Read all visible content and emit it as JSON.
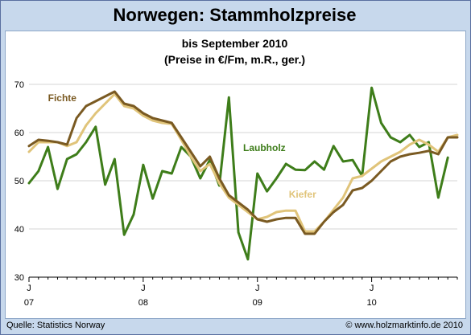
{
  "title": "Norwegen: Stammholzpreise",
  "subtitle_line1": "bis September 2010",
  "subtitle_line2": "(Preise in €/Fm, m.R., ger.)",
  "source": "Quelle: Statistics Norway",
  "copyright": "© www.holzmarktinfo.de 2010",
  "chart_data": {
    "type": "line",
    "ylim": [
      30,
      70
    ],
    "yticks": [
      30,
      40,
      50,
      60,
      70
    ],
    "xlim": [
      0,
      45
    ],
    "x_ticks": [
      {
        "x": 0,
        "month": "J",
        "year": "07"
      },
      {
        "x": 12,
        "month": "J",
        "year": "08"
      },
      {
        "x": 24,
        "month": "J",
        "year": "09"
      },
      {
        "x": 36,
        "month": "J",
        "year": "10"
      }
    ],
    "grid": true,
    "colors": {
      "Fichte": "#7a5a22",
      "Kiefer": "#e0c47a",
      "Laubholz": "#3e7d1a",
      "grid": "#d5d5d5"
    },
    "series": [
      {
        "name": "Fichte",
        "label_pos": [
          2,
          66.5
        ],
        "values": [
          57.2,
          58.5,
          58.3,
          58.0,
          57.5,
          63.0,
          65.5,
          66.5,
          67.5,
          68.5,
          66.0,
          65.5,
          64.0,
          63.0,
          62.5,
          62.0,
          59.0,
          56.0,
          53.0,
          55.0,
          50.5,
          47.0,
          45.5,
          44.0,
          42.0,
          41.5,
          42.0,
          42.3,
          42.3,
          39.0,
          39.0,
          41.5,
          43.5,
          45.0,
          48.0,
          48.5,
          50.0,
          52.0,
          54.0,
          55.0,
          55.5,
          55.8,
          56.2,
          55.5,
          59.0,
          59.0
        ]
      },
      {
        "name": "Kiefer",
        "label_pos": [
          27.3,
          46.5
        ],
        "values": [
          56.0,
          58.0,
          58.0,
          58.0,
          57.2,
          58.0,
          61.5,
          64.0,
          66.0,
          68.0,
          65.5,
          65.0,
          63.5,
          62.5,
          62.0,
          61.8,
          58.5,
          55.0,
          52.0,
          53.5,
          49.5,
          46.5,
          45.0,
          43.5,
          42.0,
          42.5,
          43.5,
          43.8,
          43.8,
          39.5,
          39.5,
          41.5,
          44.0,
          46.5,
          50.5,
          51.0,
          52.5,
          54.0,
          55.0,
          56.0,
          57.5,
          58.5,
          57.5,
          56.0,
          59.0,
          59.5
        ]
      },
      {
        "name": "Laubholz",
        "label_pos": [
          22.5,
          56.2
        ],
        "values": [
          49.5,
          52.0,
          57.0,
          48.3,
          54.5,
          55.5,
          58.0,
          61.2,
          49.2,
          54.5,
          38.8,
          43.0,
          53.3,
          46.3,
          52.0,
          51.5,
          57.0,
          55.0,
          50.5,
          54.3,
          49.0,
          67.3,
          39.3,
          33.7,
          51.5,
          47.8,
          50.5,
          53.5,
          52.3,
          52.2,
          54.0,
          52.3,
          57.2,
          54.0,
          54.3,
          51.0,
          69.3,
          62.0,
          59.0,
          58.0,
          59.5,
          57.0,
          58.0,
          46.5,
          54.8
        ]
      }
    ]
  }
}
